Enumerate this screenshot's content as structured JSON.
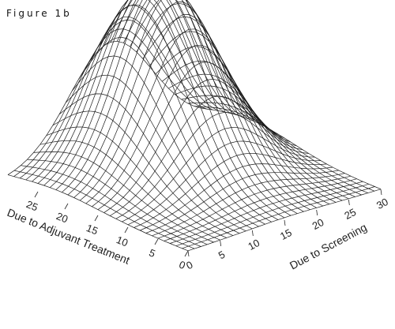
{
  "figure_label": "Figure 1b",
  "chart_data": {
    "type": "surface",
    "title": "",
    "xlabel": "Due to Screening",
    "ylabel": "Due to Adjuvant Treatment",
    "zlabel": "",
    "xlim": [
      0,
      30
    ],
    "ylim": [
      0,
      30
    ],
    "x_ticks": [
      0,
      5,
      10,
      15,
      20,
      25,
      30
    ],
    "y_ticks": [
      0,
      5,
      10,
      15,
      20,
      25
    ],
    "grid_resolution": 31,
    "surface": {
      "shape": "single bivariate peak",
      "peak_x": 16,
      "peak_y": 22,
      "spread_x": 6.5,
      "spread_y": 7.5,
      "peak_height": 1.0
    },
    "colors": {
      "mesh": "#1a1a1a",
      "background": "#ffffff"
    }
  }
}
